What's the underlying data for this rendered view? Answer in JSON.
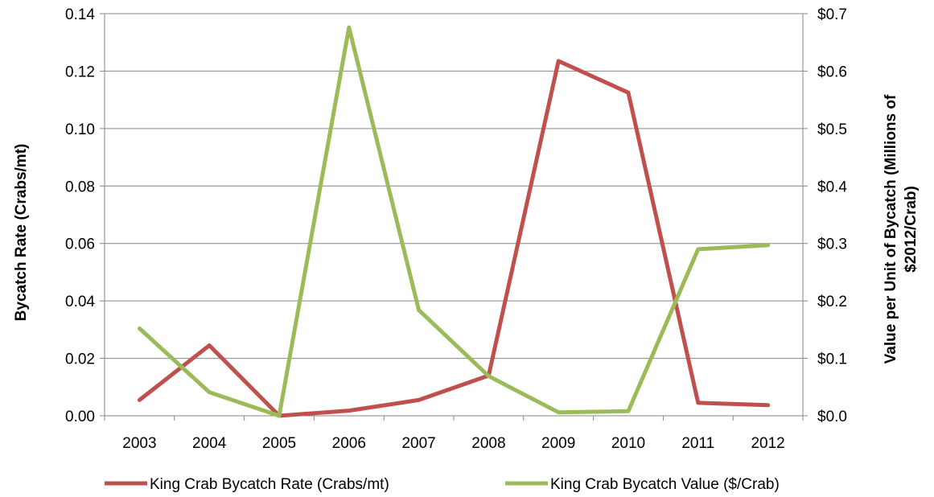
{
  "chart_data": {
    "type": "line",
    "title": "",
    "categories": [
      "2003",
      "2004",
      "2005",
      "2006",
      "2007",
      "2008",
      "2009",
      "2010",
      "2011",
      "2012"
    ],
    "ylabel": "Bycatch Rate (Crabs/mt)",
    "y2label_lines": [
      "Value per Unit of Bycatch (Millions of",
      "$2012/Crab)"
    ],
    "ylim": [
      0,
      0.14
    ],
    "y2lim": [
      0,
      0.7
    ],
    "yticks": [
      "0.00",
      "0.02",
      "0.04",
      "0.06",
      "0.08",
      "0.10",
      "0.12",
      "0.14"
    ],
    "y2ticks": [
      "$0.0",
      "$0.1",
      "$0.2",
      "$0.3",
      "$0.4",
      "$0.5",
      "$0.6",
      "$0.7"
    ],
    "grid": true,
    "legend_position": "bottom",
    "series": [
      {
        "name": "King Crab Bycatch Rate (Crabs/mt)",
        "axis": "left",
        "color": "#C0504D",
        "values": [
          0.0055,
          0.0245,
          0.0,
          0.0018,
          0.0055,
          0.014,
          0.1235,
          0.1125,
          0.0045,
          0.0037
        ]
      },
      {
        "name": "King Crab Bycatch Value ($/Crab)",
        "axis": "right",
        "color": "#9BBB59",
        "values": [
          0.152,
          0.041,
          0.0,
          0.676,
          0.184,
          0.069,
          0.006,
          0.008,
          0.29,
          0.297
        ]
      }
    ]
  }
}
